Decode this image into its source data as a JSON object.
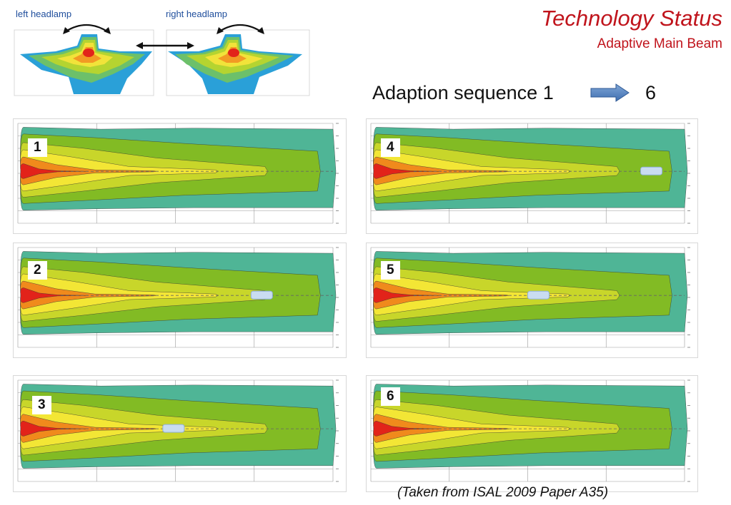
{
  "header": {
    "title": "Technology Status",
    "subtitle": "Adaptive Main Beam"
  },
  "headlamps": {
    "left_label": "left headlamp",
    "right_label": "right headlamp"
  },
  "sequence": {
    "text": "Adaption sequence 1",
    "end": "6"
  },
  "panels": [
    {
      "label": "1",
      "vehicle": false
    },
    {
      "label": "2",
      "vehicle": true
    },
    {
      "label": "3",
      "vehicle": true
    },
    {
      "label": "4",
      "vehicle": true
    },
    {
      "label": "5",
      "vehicle": true
    },
    {
      "label": "6",
      "vehicle": false
    }
  ],
  "colors": {
    "title_red": "#c0141c",
    "label_blue": "#1f4e9c",
    "zone_outer": "#4fb596",
    "zone_green": "#82bb24",
    "zone_lime": "#c8d62a",
    "zone_yellow": "#f3e635",
    "zone_orange": "#f08a1c",
    "zone_red": "#e2231a"
  },
  "credit": "(Taken from ISAL 2009 Paper A35)"
}
